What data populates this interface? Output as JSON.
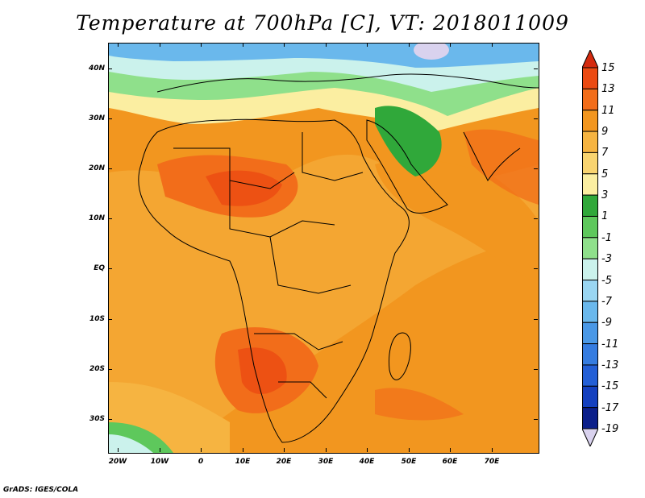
{
  "title": "Temperature at 700hPa [C], VT: 2018011009",
  "footer": "GrADS: IGES/COLA",
  "map": {
    "lat_labels": [
      "40N",
      "30N",
      "20N",
      "10N",
      "EQ",
      "10S",
      "20S",
      "30S"
    ],
    "lon_labels": [
      "20W",
      "10W",
      "0",
      "10E",
      "20E",
      "30E",
      "40E",
      "50E",
      "60E",
      "70E"
    ]
  },
  "colorbar": {
    "labels": [
      "15",
      "13",
      "11",
      "9",
      "7",
      "5",
      "3",
      "1",
      "-1",
      "-3",
      "-5",
      "-7",
      "-9",
      "-11",
      "-13",
      "-15",
      "-17",
      "-19"
    ],
    "colors": [
      "#d42a0e",
      "#eb4a12",
      "#f26d1a",
      "#f2961f",
      "#f6b441",
      "#f9d470",
      "#fbeea1",
      "#30a83a",
      "#5ec85c",
      "#8fe08b",
      "#cbf2ec",
      "#9ad6f2",
      "#6ab8ec",
      "#4a98e6",
      "#357ce0",
      "#235fd6",
      "#1440bf",
      "#0b1f8a",
      "#d9d2ee"
    ]
  }
}
